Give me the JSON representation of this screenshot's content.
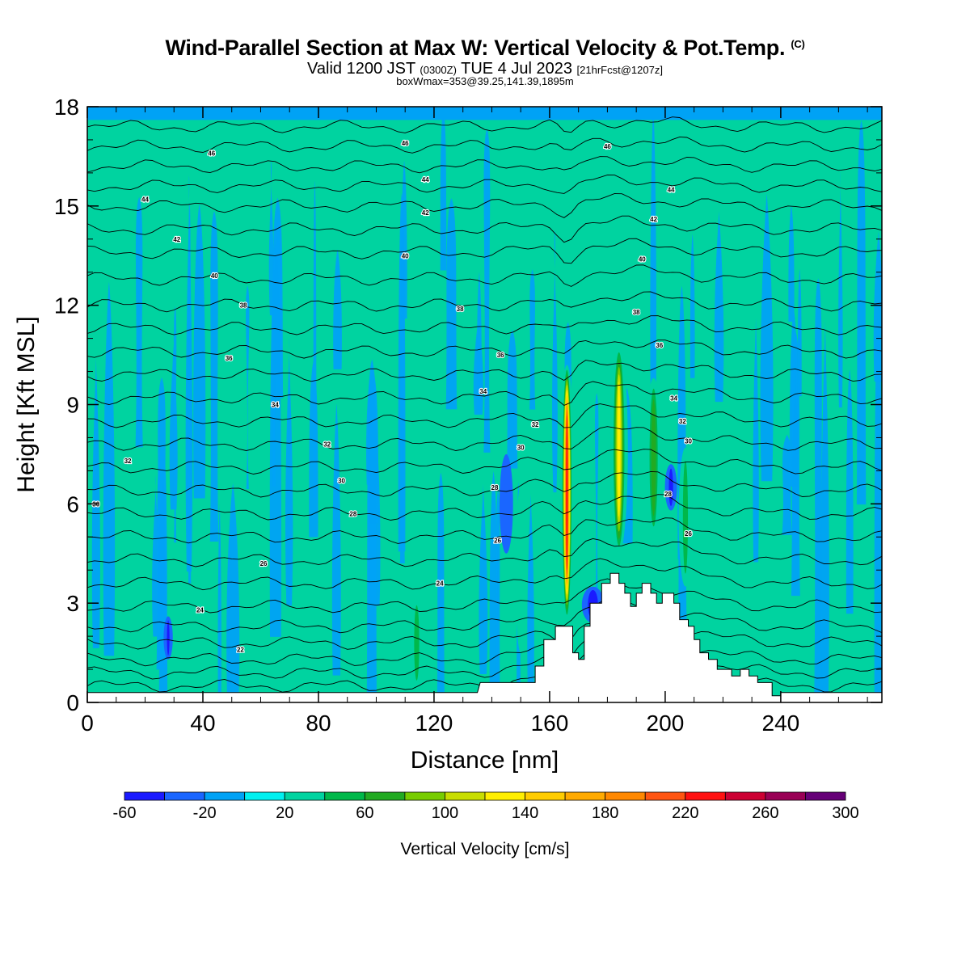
{
  "header": {
    "title": "Wind-Parallel Section at Max W: Vertical Velocity & Pot.Temp.",
    "title_mark": "(C)",
    "valid_prefix": "Valid 1200 JST",
    "valid_utc": "(0300Z)",
    "valid_date": "TUE 4 Jul 2023",
    "forecast": "[21hrFcst@1207z]",
    "box_info": "boxWmax=353@39.25,141.39,1895m"
  },
  "chart_data": {
    "type": "heatmap",
    "xlabel": "Distance [nm]",
    "ylabel": "Height [Kft MSL]",
    "xlim": [
      0,
      275
    ],
    "ylim": [
      0,
      18
    ],
    "x_ticks": [
      0,
      40,
      80,
      120,
      160,
      200,
      240
    ],
    "x_tick_labels": [
      "0",
      "40",
      "80",
      "120",
      "160",
      "200",
      "240"
    ],
    "y_ticks": [
      0,
      3,
      6,
      9,
      12,
      15,
      18
    ],
    "y_tick_labels": [
      "0",
      "3",
      "6",
      "9",
      "12",
      "15",
      "18"
    ],
    "colorbar": {
      "title": "Vertical Velocity [cm/s]",
      "levels": [
        -60,
        -40,
        -20,
        0,
        20,
        40,
        60,
        80,
        100,
        120,
        140,
        160,
        180,
        200,
        220,
        240,
        260,
        280,
        300
      ],
      "labels": [
        "-60",
        "-20",
        "20",
        "60",
        "100",
        "140",
        "180",
        "220",
        "260",
        "300"
      ],
      "label_values": [
        -60,
        -20,
        20,
        60,
        100,
        140,
        180,
        220,
        260,
        300
      ],
      "colors": [
        "#1a1aff",
        "#1a66ff",
        "#00a2f5",
        "#00f0f0",
        "#00d3a0",
        "#00b84a",
        "#22aa22",
        "#77cc00",
        "#c8dd00",
        "#ffee00",
        "#ffcc00",
        "#ffaa00",
        "#ff8800",
        "#ff5511",
        "#ff1111",
        "#cc0033",
        "#990055",
        "#660077"
      ]
    },
    "background_levels": {
      "updraft": 20,
      "downdraft": -20
    },
    "plumes": [
      {
        "x": 114,
        "width": 3,
        "z_min": 0.4,
        "z_max": 3.2,
        "w": 45
      },
      {
        "x": 145,
        "width": 3,
        "z_min": 4.5,
        "z_max": 7.5,
        "w": -35
      },
      {
        "x": 150,
        "width": 2,
        "z_min": 1.5,
        "z_max": 6.5,
        "w": 25
      },
      {
        "x": 166,
        "width": 3.5,
        "z_min": 2.5,
        "z_max": 10.2,
        "w": 230
      },
      {
        "x": 184,
        "width": 4.5,
        "z_min": 4.5,
        "z_max": 10.8,
        "w": 130
      },
      {
        "x": 196,
        "width": 4,
        "z_min": 5.0,
        "z_max": 9.8,
        "w": 70
      },
      {
        "x": 207,
        "width": 3,
        "z_min": 3.5,
        "z_max": 7.7,
        "w": 45
      },
      {
        "x": 202,
        "width": 2.5,
        "z_min": 5.8,
        "z_max": 7.2,
        "w": -40
      },
      {
        "x": 28,
        "width": 1.5,
        "z_min": 1.3,
        "z_max": 2.6,
        "w": -40
      },
      {
        "x": 175,
        "width": 6,
        "z_min": 2.4,
        "z_max": 3.5,
        "w": -40
      }
    ],
    "terrain": [
      [
        0,
        0.3
      ],
      [
        135,
        0.3
      ],
      [
        136,
        0.6
      ],
      [
        155,
        0.6
      ],
      [
        155,
        1.1
      ],
      [
        158,
        1.1
      ],
      [
        158,
        1.9
      ],
      [
        162,
        1.9
      ],
      [
        162,
        2.3
      ],
      [
        168,
        2.3
      ],
      [
        168,
        1.5
      ],
      [
        170,
        1.5
      ],
      [
        170,
        1.3
      ],
      [
        172,
        1.3
      ],
      [
        172,
        2.3
      ],
      [
        174,
        2.3
      ],
      [
        174,
        3.0
      ],
      [
        178,
        3.0
      ],
      [
        178,
        3.6
      ],
      [
        181,
        3.6
      ],
      [
        181,
        3.9
      ],
      [
        184,
        3.9
      ],
      [
        184,
        3.6
      ],
      [
        186,
        3.6
      ],
      [
        186,
        3.3
      ],
      [
        188,
        3.3
      ],
      [
        188,
        2.9
      ],
      [
        190,
        2.9
      ],
      [
        190,
        3.3
      ],
      [
        192,
        3.3
      ],
      [
        192,
        3.6
      ],
      [
        195,
        3.6
      ],
      [
        195,
        3.3
      ],
      [
        197,
        3.3
      ],
      [
        197,
        3.0
      ],
      [
        199,
        3.0
      ],
      [
        199,
        3.3
      ],
      [
        203,
        3.3
      ],
      [
        203,
        3.0
      ],
      [
        205,
        3.0
      ],
      [
        205,
        2.5
      ],
      [
        208,
        2.5
      ],
      [
        208,
        2.3
      ],
      [
        210,
        2.3
      ],
      [
        210,
        1.9
      ],
      [
        212,
        1.9
      ],
      [
        212,
        1.5
      ],
      [
        215,
        1.5
      ],
      [
        215,
        1.3
      ],
      [
        218,
        1.3
      ],
      [
        218,
        1.0
      ],
      [
        223,
        1.0
      ],
      [
        223,
        0.8
      ],
      [
        226,
        0.8
      ],
      [
        226,
        1.0
      ],
      [
        229,
        1.0
      ],
      [
        229,
        0.8
      ],
      [
        232,
        0.8
      ],
      [
        232,
        0.6
      ],
      [
        237,
        0.6
      ],
      [
        237,
        0.2
      ],
      [
        240,
        0.2
      ],
      [
        240,
        0.3
      ],
      [
        275,
        0.3
      ]
    ],
    "isentrope_base_temps": [
      20,
      21,
      22,
      23,
      24,
      25,
      26,
      27,
      28,
      29,
      30,
      31,
      32,
      33,
      34,
      35,
      36,
      37,
      38,
      39,
      40,
      41,
      42,
      43,
      44,
      45,
      46
    ],
    "isentrope_heights": [
      0.5,
      0.9,
      1.3,
      1.8,
      2.3,
      2.9,
      3.6,
      4.3,
      5.0,
      5.7,
      6.4,
      7.1,
      7.8,
      8.5,
      9.2,
      9.9,
      10.6,
      11.3,
      12.0,
      12.8,
      13.6,
      14.3,
      15.0,
      15.6,
      16.2,
      16.8,
      17.4
    ],
    "isentrope_labels": [
      {
        "text": "46",
        "x": 43,
        "z": 16.6
      },
      {
        "text": "46",
        "x": 110,
        "z": 16.9
      },
      {
        "text": "46",
        "x": 180,
        "z": 16.8
      },
      {
        "text": "44",
        "x": 20,
        "z": 15.2
      },
      {
        "text": "44",
        "x": 117,
        "z": 15.8
      },
      {
        "text": "44",
        "x": 202,
        "z": 15.5
      },
      {
        "text": "42",
        "x": 31,
        "z": 14.0
      },
      {
        "text": "42",
        "x": 117,
        "z": 14.8
      },
      {
        "text": "42",
        "x": 196,
        "z": 14.6
      },
      {
        "text": "40",
        "x": 44,
        "z": 12.9
      },
      {
        "text": "40",
        "x": 110,
        "z": 13.5
      },
      {
        "text": "40",
        "x": 192,
        "z": 13.4
      },
      {
        "text": "38",
        "x": 54,
        "z": 12.0
      },
      {
        "text": "38",
        "x": 129,
        "z": 11.9
      },
      {
        "text": "38",
        "x": 190,
        "z": 11.8
      },
      {
        "text": "36",
        "x": 49,
        "z": 10.4
      },
      {
        "text": "36",
        "x": 143,
        "z": 10.5
      },
      {
        "text": "36",
        "x": 198,
        "z": 10.8
      },
      {
        "text": "34",
        "x": 65,
        "z": 9.0
      },
      {
        "text": "34",
        "x": 137,
        "z": 9.4
      },
      {
        "text": "34",
        "x": 203,
        "z": 9.2
      },
      {
        "text": "32",
        "x": 14,
        "z": 7.3
      },
      {
        "text": "32",
        "x": 83,
        "z": 7.8
      },
      {
        "text": "32",
        "x": 155,
        "z": 8.4
      },
      {
        "text": "32",
        "x": 206,
        "z": 8.5
      },
      {
        "text": "30",
        "x": 3,
        "z": 6.0
      },
      {
        "text": "30",
        "x": 88,
        "z": 6.7
      },
      {
        "text": "30",
        "x": 150,
        "z": 7.7
      },
      {
        "text": "30",
        "x": 208,
        "z": 7.9
      },
      {
        "text": "28",
        "x": 92,
        "z": 5.7
      },
      {
        "text": "28",
        "x": 141,
        "z": 6.5
      },
      {
        "text": "28",
        "x": 201,
        "z": 6.3
      },
      {
        "text": "26",
        "x": 61,
        "z": 4.2
      },
      {
        "text": "26",
        "x": 142,
        "z": 4.9
      },
      {
        "text": "26",
        "x": 208,
        "z": 5.1
      },
      {
        "text": "24",
        "x": 39,
        "z": 2.8
      },
      {
        "text": "24",
        "x": 122,
        "z": 3.6
      },
      {
        "text": "22",
        "x": 53,
        "z": 1.6
      }
    ]
  }
}
